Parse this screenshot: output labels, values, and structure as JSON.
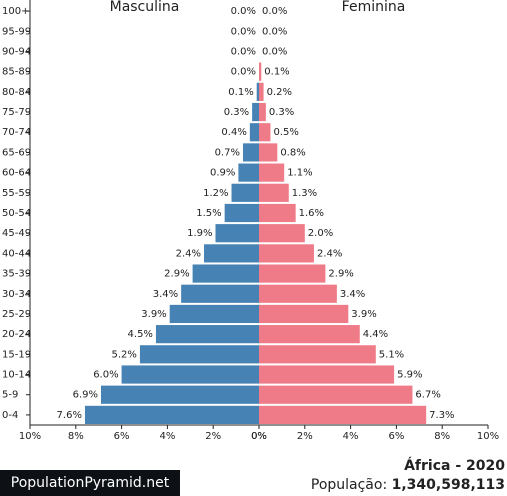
{
  "chart_data": {
    "type": "pyramid",
    "title": "África - 2020",
    "categories": [
      "100+",
      "95-99",
      "90-94",
      "85-89",
      "80-84",
      "75-79",
      "70-74",
      "65-69",
      "60-64",
      "55-59",
      "50-54",
      "45-49",
      "40-44",
      "35-39",
      "30-34",
      "25-29",
      "20-24",
      "15-19",
      "10-14",
      "5-9",
      "0-4"
    ],
    "series": [
      {
        "name": "Masculina",
        "side": "left",
        "color": "#4682b4",
        "values": [
          0.0,
          0.0,
          0.0,
          0.0,
          0.1,
          0.3,
          0.4,
          0.7,
          0.9,
          1.2,
          1.5,
          1.9,
          2.4,
          2.9,
          3.4,
          3.9,
          4.5,
          5.2,
          6.0,
          6.9,
          7.6
        ],
        "value_labels": [
          "0.0%",
          "0.0%",
          "0.0%",
          "0.0%",
          "0.1%",
          "0.3%",
          "0.4%",
          "0.7%",
          "0.9%",
          "1.2%",
          "1.5%",
          "1.9%",
          "2.4%",
          "2.9%",
          "3.4%",
          "3.9%",
          "4.5%",
          "5.2%",
          "6.0%",
          "6.9%",
          "7.6%"
        ]
      },
      {
        "name": "Feminina",
        "side": "right",
        "color": "#ef7b88",
        "values": [
          0.0,
          0.0,
          0.0,
          0.1,
          0.2,
          0.3,
          0.5,
          0.8,
          1.1,
          1.3,
          1.6,
          2.0,
          2.4,
          2.9,
          3.4,
          3.9,
          4.4,
          5.1,
          5.9,
          6.7,
          7.3
        ],
        "value_labels": [
          "0.0%",
          "0.0%",
          "0.0%",
          "0.1%",
          "0.2%",
          "0.3%",
          "0.5%",
          "0.8%",
          "1.1%",
          "1.3%",
          "1.6%",
          "2.0%",
          "2.4%",
          "2.9%",
          "3.4%",
          "3.9%",
          "4.4%",
          "5.1%",
          "5.9%",
          "6.7%",
          "7.3%"
        ]
      }
    ],
    "xlim": [
      0,
      10
    ],
    "xticks": [
      {
        "value": 0,
        "label": "0%"
      },
      {
        "value": 2,
        "label": "2%"
      },
      {
        "value": 4,
        "label": "4%"
      },
      {
        "value": 6,
        "label": "6%"
      },
      {
        "value": 8,
        "label": "8%"
      },
      {
        "value": 10,
        "label": "10%"
      }
    ],
    "population_label": "População:",
    "population": {
      "value": 1340598113,
      "label": "1,340,598,113"
    },
    "source": "PopulationPyramid.net"
  }
}
